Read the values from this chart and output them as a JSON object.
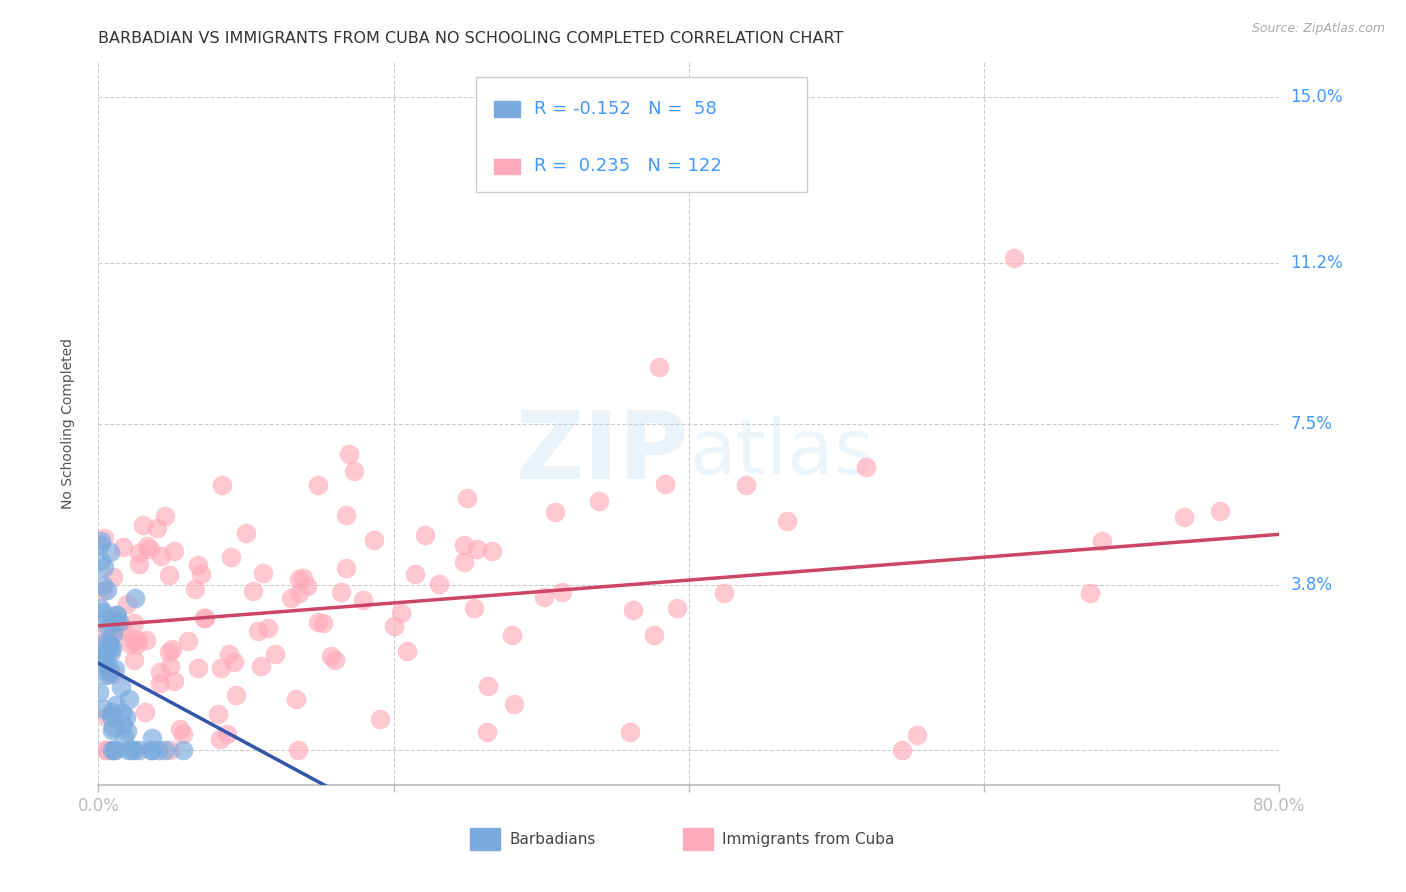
{
  "title": "BARBADIAN VS IMMIGRANTS FROM CUBA NO SCHOOLING COMPLETED CORRELATION CHART",
  "source": "Source: ZipAtlas.com",
  "ylabel": "No Schooling Completed",
  "xlim": [
    0.0,
    0.8
  ],
  "ylim": [
    -0.008,
    0.158
  ],
  "yticks": [
    0.0,
    0.038,
    0.075,
    0.112,
    0.15
  ],
  "ytick_labels": [
    "",
    "3.8%",
    "7.5%",
    "11.2%",
    "15.0%"
  ],
  "xticks": [
    0.0,
    0.2,
    0.4,
    0.6,
    0.8
  ],
  "barbadian_color": "#7aaadd",
  "barbadian_edge": "#5588cc",
  "cuba_color": "#ffaabb",
  "cuba_edge": "#ee8899",
  "blue_line_color": "#3355aa",
  "blue_dash_color": "#8899cc",
  "pink_line_color": "#cc4466",
  "barbadian_R": -0.152,
  "barbadian_N": 58,
  "cuba_R": 0.235,
  "cuba_N": 122,
  "legend_label_1": "Barbadians",
  "legend_label_2": "Immigrants from Cuba",
  "watermark": "ZIPatlas",
  "title_fontsize": 11.5,
  "axis_label_fontsize": 10,
  "tick_fontsize": 12,
  "source_fontsize": 9,
  "legend_fontsize": 13
}
